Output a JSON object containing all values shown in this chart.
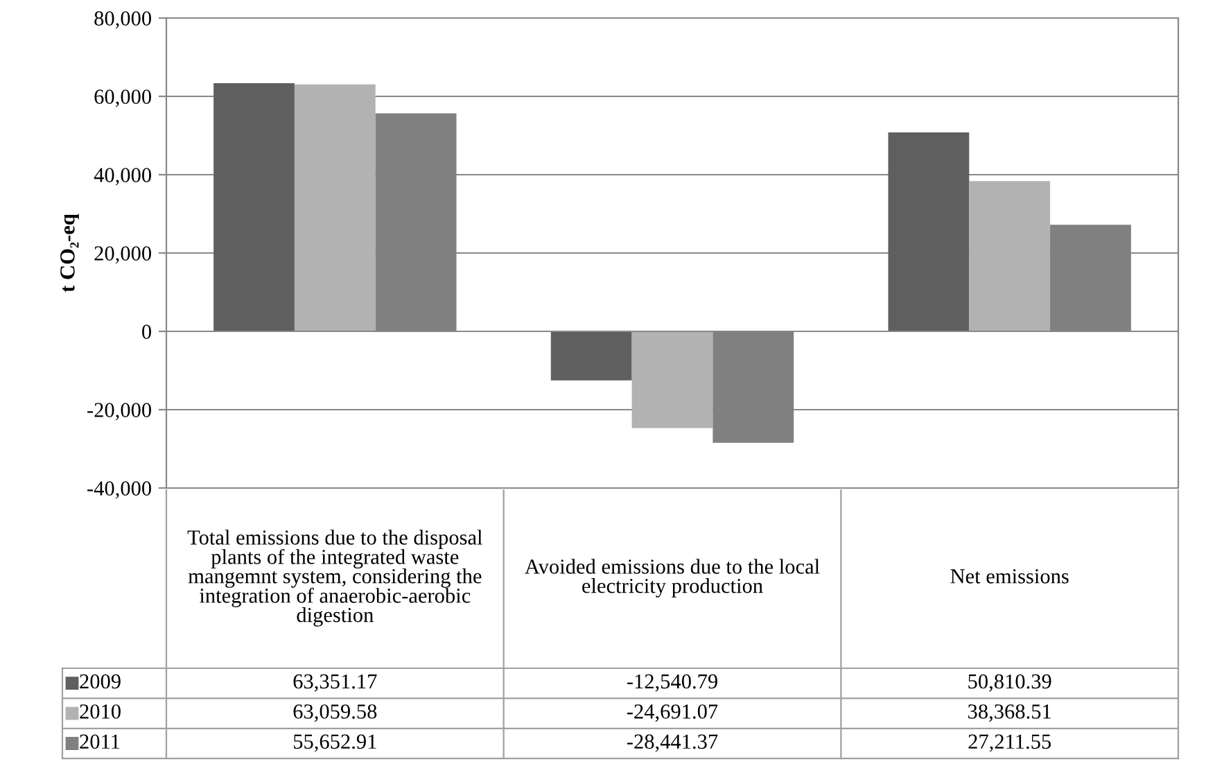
{
  "chart_data": {
    "type": "bar",
    "ylabel": "t CO₂-eq",
    "categories": [
      "Total emissions due to the disposal plants of the integrated waste mangemnt system, considering the integration of anaerobic-aerobic digestion",
      "Avoided emissions due to the local electricity production",
      "Net emissions"
    ],
    "series": [
      {
        "name": "2009",
        "color": "#5f5f5f",
        "values": [
          63351.17,
          -12540.79,
          50810.39
        ],
        "value_labels": [
          "63,351.17",
          "-12,540.79",
          "50,810.39"
        ]
      },
      {
        "name": "2010",
        "color": "#b2b2b2",
        "values": [
          63059.58,
          -24691.07,
          38368.51
        ],
        "value_labels": [
          "63,059.58",
          "-24,691.07",
          "38,368.51"
        ]
      },
      {
        "name": "2011",
        "color": "#808080",
        "values": [
          55652.91,
          -28441.37,
          27211.55
        ],
        "value_labels": [
          "55,652.91",
          "-28,441.37",
          "27,211.55"
        ]
      }
    ],
    "ylim": [
      -40000,
      80000
    ],
    "yticks": [
      {
        "value": -40000,
        "label": "-40,000"
      },
      {
        "value": -20000,
        "label": "-20,000"
      },
      0,
      {
        "value": 20000,
        "label": "20,000"
      },
      {
        "value": 40000,
        "label": "40,000"
      },
      {
        "value": 60000,
        "label": "60,000"
      },
      {
        "value": 80000,
        "label": "80,000"
      }
    ],
    "grid": "y",
    "legend": "bottom"
  }
}
